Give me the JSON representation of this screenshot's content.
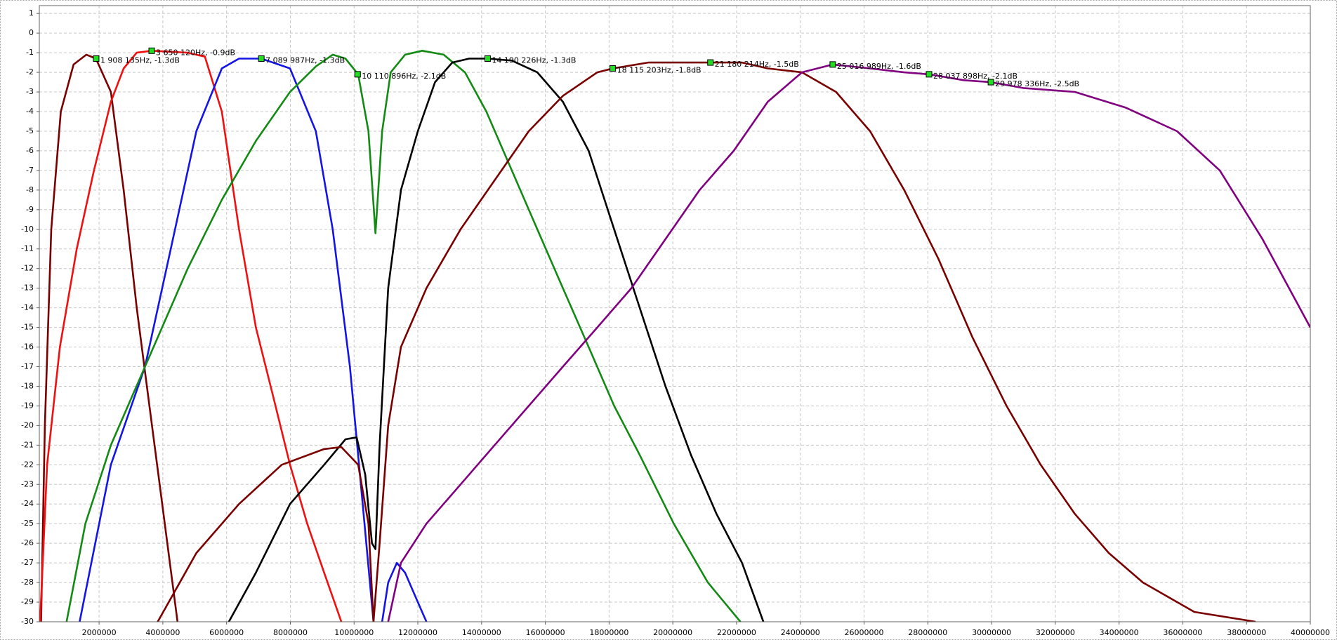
{
  "chart_data": {
    "type": "line",
    "grid": true,
    "xlim": [
      125000,
      40000000
    ],
    "ylim": [
      -30,
      1.4
    ],
    "xticks": [
      2000000,
      4000000,
      6000000,
      8000000,
      10000000,
      12000000,
      14000000,
      16000000,
      18000000,
      20000000,
      22000000,
      24000000,
      26000000,
      28000000,
      30000000,
      32000000,
      34000000,
      36000000,
      38000000,
      40000000
    ],
    "yticks": [
      1,
      0,
      -1,
      -2,
      -3,
      -4,
      -5,
      -6,
      -7,
      -8,
      -9,
      -10,
      -11,
      -12,
      -13,
      -14,
      -15,
      -16,
      -17,
      -18,
      -19,
      -20,
      -21,
      -22,
      -23,
      -24,
      -25,
      -26,
      -27,
      -28,
      -29,
      -30
    ],
    "series": [
      {
        "color": "#7a0000",
        "x": [
          180000,
          300000,
          500000,
          800000,
          1200000,
          1600000,
          1900000,
          2370000,
          2770000,
          3180000,
          3580000,
          3980000,
          4460000
        ],
        "values": [
          -30,
          -20,
          -10,
          -4,
          -1.6,
          -1.1,
          -1.3,
          -3,
          -8,
          -14,
          -19,
          -24,
          -30
        ]
      },
      {
        "color": "#f01010",
        "x": [
          150000,
          370000,
          770000,
          1300000,
          1840000,
          2370000,
          2770000,
          3180000,
          3650000,
          4780000,
          5320000,
          5850000,
          6390000,
          6920000,
          7460000,
          7990000,
          8530000,
          9060000,
          9600000
        ],
        "values": [
          -30,
          -22,
          -16,
          -11,
          -7,
          -3.5,
          -1.8,
          -1.0,
          -0.9,
          -1,
          -1.2,
          -4,
          -10,
          -15,
          -18.5,
          -22,
          -25,
          -27.5,
          -30
        ]
      },
      {
        "color": "#1414e6",
        "x": [
          1390000,
          2370000,
          3440000,
          4250000,
          5050000,
          5850000,
          6390000,
          7090000,
          7990000,
          8800000,
          9330000,
          9870000,
          10270000,
          10610000,
          10750000,
          10880000,
          11070000,
          11340000,
          11600000,
          12000000,
          12270000
        ],
        "values": [
          -30,
          -22,
          -17,
          -11,
          -5,
          -1.8,
          -1.3,
          -1.3,
          -1.8,
          -5,
          -10,
          -17,
          -24,
          -30,
          null,
          -30,
          -28,
          -27,
          -27.5,
          -29,
          -30
        ]
      },
      {
        "color": "#138a13",
        "x": [
          980000,
          1570000,
          2370000,
          3440000,
          4780000,
          5850000,
          6920000,
          7990000,
          8800000,
          9330000,
          9730000,
          10130000,
          10450000,
          10670000,
          10880000,
          11150000,
          11600000,
          12140000,
          12810000,
          13480000,
          14150000,
          14950000,
          15750000,
          16550000,
          17360000,
          18160000,
          18960000,
          20030000,
          21100000,
          22120000
        ],
        "values": [
          -30,
          -25,
          -21,
          -17,
          -12,
          -8.5,
          -5.5,
          -3,
          -1.7,
          -1.1,
          -1.3,
          -2.1,
          -5,
          -10.2,
          -5,
          -2,
          -1.1,
          -0.9,
          -1.1,
          -2,
          -4,
          -7,
          -10,
          -13,
          -16,
          -19,
          -21.5,
          -25,
          -28,
          -30
        ]
      },
      {
        "color": "#000000",
        "x": [
          6070000,
          6920000,
          7990000,
          9060000,
          9730000,
          10080000,
          10350000,
          10560000,
          10670000,
          10800000,
          11070000,
          11470000,
          12000000,
          12540000,
          13080000,
          13610000,
          14190000,
          14950000,
          15750000,
          16550000,
          17360000,
          18160000,
          18960000,
          19770000,
          20570000,
          21370000,
          22170000,
          22840000
        ],
        "values": [
          -30,
          -27.5,
          -24,
          -22,
          -20.7,
          -20.6,
          -22.5,
          -26,
          -26.3,
          -21,
          -13,
          -8,
          -5,
          -2.5,
          -1.5,
          -1.3,
          -1.3,
          -1.4,
          -2,
          -3.5,
          -6,
          -10,
          -14,
          -18,
          -21.5,
          -24.5,
          -27,
          -30
        ]
      },
      {
        "color": "#7a0000",
        "x": [
          3840000,
          5050000,
          6390000,
          7730000,
          9060000,
          9600000,
          10130000,
          10450000,
          10610000,
          10800000,
          11070000,
          11470000,
          12270000,
          13340000,
          14410000,
          15480000,
          16550000,
          17630000,
          18120000,
          19230000,
          20300000,
          21180000,
          22170000,
          22980000,
          24050000,
          25120000,
          26190000,
          27260000,
          28330000,
          29400000,
          30470000,
          31540000,
          32610000,
          33680000,
          34750000,
          36360000,
          38280000
        ],
        "values": [
          -30,
          -26.5,
          -24,
          -22,
          -21.2,
          -21.1,
          -22,
          -25,
          -30,
          -26,
          -20,
          -16,
          -13,
          -10,
          -7.5,
          -5,
          -3.2,
          -2,
          -1.8,
          -1.5,
          -1.5,
          -1.5,
          -1.5,
          -1.8,
          -2,
          -3,
          -5,
          -8,
          -11.5,
          -15.5,
          -19,
          -22,
          -24.5,
          -26.5,
          -28,
          -29.5,
          -30
        ]
      },
      {
        "color": "#800080",
        "x": [
          11070000,
          11470000,
          12270000,
          13340000,
          14410000,
          15480000,
          16550000,
          17630000,
          18700000,
          19770000,
          20840000,
          21910000,
          22980000,
          24050000,
          25020000,
          26190000,
          27260000,
          28040000,
          29130000,
          29980000,
          30990000,
          32610000,
          34210000,
          35820000,
          37160000,
          38500000,
          40000000
        ],
        "values": [
          -30,
          -27,
          -25,
          -23,
          -21,
          -19,
          -17,
          -15,
          -13,
          -10.5,
          -8,
          -6,
          -3.5,
          -2,
          -1.6,
          -1.8,
          -2,
          -2.1,
          -2.4,
          -2.5,
          -2.8,
          -3,
          -3.8,
          -5,
          -7,
          -10.5,
          -15
        ]
      }
    ],
    "annotations": [
      {
        "x": 1908135,
        "y": -1.3,
        "label": "1 908 135Hz, -1.3dB"
      },
      {
        "x": 3650120,
        "y": -0.9,
        "label": "3 650 120Hz, -0.9dB"
      },
      {
        "x": 7089987,
        "y": -1.3,
        "label": "7 089 987Hz, -1.3dB"
      },
      {
        "x": 10110896,
        "y": -2.1,
        "label": "10 110 896Hz, -2.1dB"
      },
      {
        "x": 14190226,
        "y": -1.3,
        "label": "14 190 226Hz, -1.3dB"
      },
      {
        "x": 18115203,
        "y": -1.8,
        "label": "18 115 203Hz, -1.8dB"
      },
      {
        "x": 21180214,
        "y": -1.5,
        "label": "21 180 214Hz, -1.5dB"
      },
      {
        "x": 25016989,
        "y": -1.6,
        "label": "25 016 989Hz, -1.6dB"
      },
      {
        "x": 28037898,
        "y": -2.1,
        "label": "28 037 898Hz, -2.1dB"
      },
      {
        "x": 29978336,
        "y": -2.5,
        "label": "29 978 336Hz, -2.5dB"
      }
    ]
  }
}
